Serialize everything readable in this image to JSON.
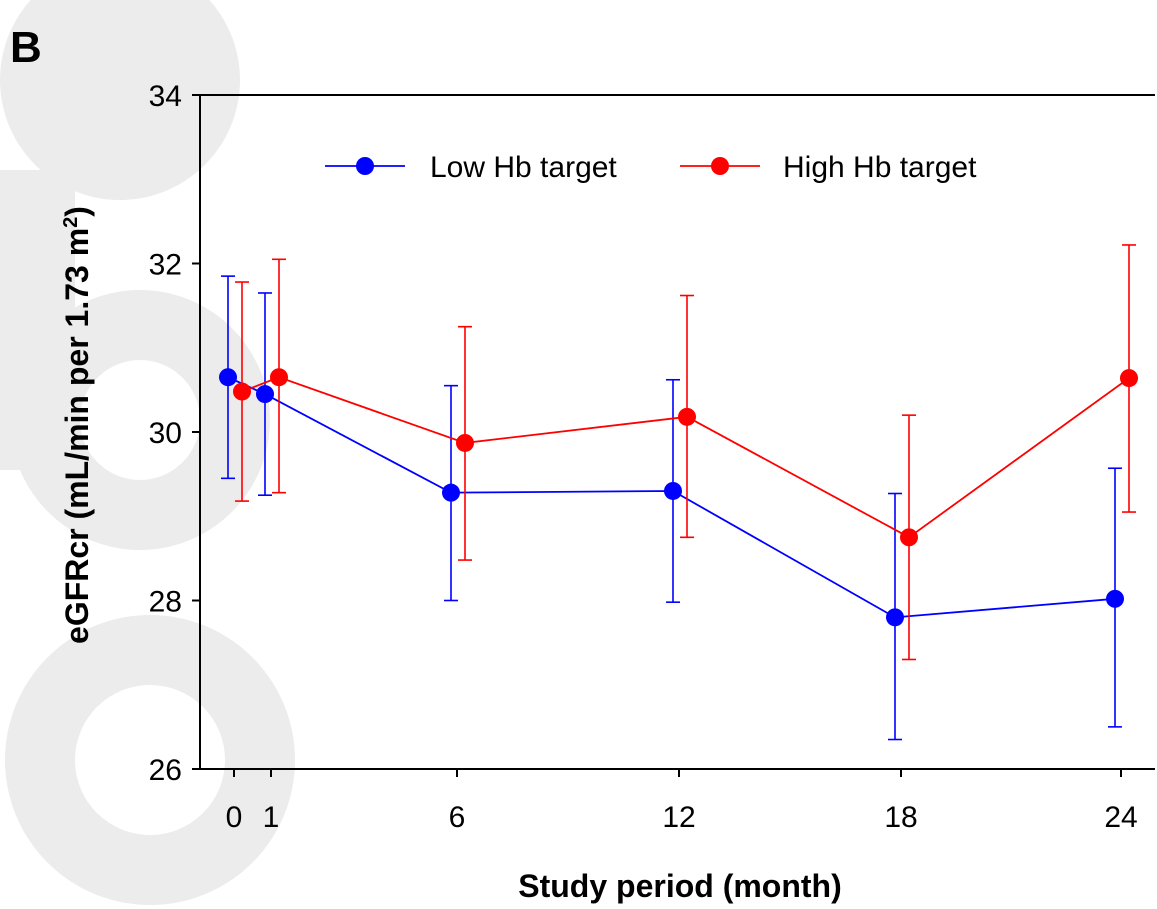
{
  "panel_label": "B",
  "watermark": "ccepte",
  "chart_data": {
    "type": "line",
    "title": "",
    "xlabel": "Study period (month)",
    "ylabel": "eGFRcr (mL/min per 1.73 m",
    "ylabel_superscript": "2",
    "ylabel_suffix": ")",
    "xlim": [
      -1,
      25
    ],
    "ylim": [
      26,
      34
    ],
    "xticks": [
      0,
      1,
      6,
      12,
      18,
      24
    ],
    "yticks": [
      26,
      28,
      30,
      32,
      34
    ],
    "grid": false,
    "legend_position": "top",
    "series": [
      {
        "name": "Low Hb target",
        "color": "#0000ff",
        "x": [
          0,
          1,
          6,
          12,
          18,
          24
        ],
        "y": [
          30.65,
          30.45,
          29.28,
          29.3,
          27.8,
          28.02
        ],
        "error_low": [
          29.45,
          29.25,
          28.0,
          27.98,
          26.35,
          26.5
        ],
        "error_high": [
          31.85,
          31.65,
          30.55,
          30.62,
          29.27,
          29.57
        ]
      },
      {
        "name": "High Hb target",
        "color": "#ff0000",
        "x": [
          0,
          1,
          6,
          12,
          18,
          24
        ],
        "y": [
          30.48,
          30.65,
          29.87,
          30.18,
          28.75,
          30.64
        ],
        "error_low": [
          29.18,
          29.28,
          28.48,
          28.75,
          27.3,
          29.05
        ],
        "error_high": [
          31.78,
          32.05,
          31.25,
          31.62,
          30.2,
          32.22
        ]
      }
    ]
  }
}
